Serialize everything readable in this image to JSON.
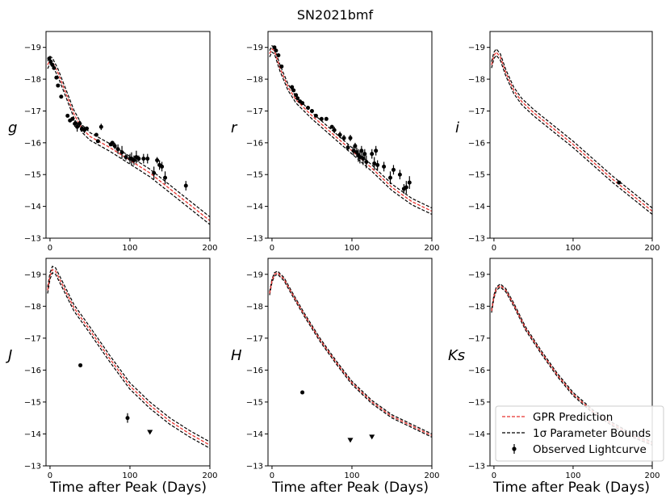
{
  "chart_data": {
    "title": "SN2021bmf",
    "type": "line",
    "xlabel": "Time after Peak (Days)",
    "xlim": [
      -5,
      200
    ],
    "ylim": [
      -19.5,
      -13
    ],
    "x_ticks": [
      0,
      100,
      200
    ],
    "y_ticks": [
      -19,
      -18,
      -17,
      -16,
      -15,
      -14,
      -13
    ],
    "y_inverted": true,
    "legend": {
      "location": "lower-right",
      "entries": [
        "GPR Prediction",
        "1σ Parameter Bounds",
        "Observed Lightcurve"
      ]
    },
    "colors": {
      "gpr": "#e8322e",
      "bounds": "#000000",
      "observed": "#000000"
    },
    "panels": [
      {
        "band": "g",
        "model": [
          [
            -3,
            -18.45
          ],
          [
            0,
            -18.6
          ],
          [
            3,
            -18.55
          ],
          [
            10,
            -18.2
          ],
          [
            20,
            -17.55
          ],
          [
            30,
            -16.9
          ],
          [
            40,
            -16.45
          ],
          [
            50,
            -16.2
          ],
          [
            75,
            -15.85
          ],
          [
            100,
            -15.45
          ],
          [
            125,
            -15.05
          ],
          [
            150,
            -14.55
          ],
          [
            175,
            -14.05
          ],
          [
            200,
            -13.55
          ]
        ],
        "band_width": 0.12,
        "observations": [
          [
            -1,
            -18.65,
            0
          ],
          [
            1,
            -18.55,
            0
          ],
          [
            3,
            -18.45,
            0
          ],
          [
            5,
            -18.35,
            0
          ],
          [
            8,
            -18.05,
            0
          ],
          [
            10,
            -17.8,
            0
          ],
          [
            14,
            -17.45,
            0
          ],
          [
            22,
            -16.85,
            0
          ],
          [
            25,
            -16.7,
            0.05
          ],
          [
            28,
            -16.75,
            0
          ],
          [
            31,
            -16.6,
            0.1
          ],
          [
            34,
            -16.5,
            0.15
          ],
          [
            37,
            -16.6,
            0.1
          ],
          [
            40,
            -16.45,
            0.1
          ],
          [
            43,
            -16.4,
            0.1
          ],
          [
            46,
            -16.45,
            0
          ],
          [
            58,
            -16.25,
            0
          ],
          [
            60,
            -16.05,
            0
          ],
          [
            64,
            -16.5,
            0.1
          ],
          [
            76,
            -15.95,
            0
          ],
          [
            78,
            -16.0,
            0
          ],
          [
            81,
            -15.9,
            0.1
          ],
          [
            85,
            -15.8,
            0.15
          ],
          [
            90,
            -15.7,
            0.2
          ],
          [
            95,
            -15.55,
            0.1
          ],
          [
            100,
            -15.5,
            0.15
          ],
          [
            102,
            -15.5,
            0.2
          ],
          [
            105,
            -15.45,
            0.15
          ],
          [
            108,
            -15.55,
            0.2
          ],
          [
            111,
            -15.5,
            0.1
          ],
          [
            117,
            -15.5,
            0.15
          ],
          [
            122,
            -15.5,
            0.15
          ],
          [
            130,
            -15.05,
            0.2
          ],
          [
            134,
            -15.45,
            0.1
          ],
          [
            137,
            -15.3,
            0.15
          ],
          [
            140,
            -15.25,
            0.15
          ],
          [
            144,
            -14.9,
            0.2
          ],
          [
            170,
            -14.65,
            0.15
          ]
        ],
        "upper_limits": []
      },
      {
        "band": "r",
        "model": [
          [
            -3,
            -18.8
          ],
          [
            0,
            -18.95
          ],
          [
            3,
            -18.9
          ],
          [
            10,
            -18.35
          ],
          [
            20,
            -17.75
          ],
          [
            30,
            -17.35
          ],
          [
            50,
            -16.85
          ],
          [
            75,
            -16.3
          ],
          [
            100,
            -15.75
          ],
          [
            125,
            -15.2
          ],
          [
            150,
            -14.6
          ],
          [
            175,
            -14.15
          ],
          [
            200,
            -13.85
          ]
        ],
        "band_width": 0.1,
        "observations": [
          [
            3,
            -19.0,
            0
          ],
          [
            5,
            -18.9,
            0
          ],
          [
            8,
            -18.75,
            0
          ],
          [
            12,
            -18.4,
            0
          ],
          [
            25,
            -17.75,
            0
          ],
          [
            27,
            -17.65,
            0
          ],
          [
            30,
            -17.5,
            0
          ],
          [
            32,
            -17.4,
            0
          ],
          [
            35,
            -17.3,
            0
          ],
          [
            38,
            -17.25,
            0
          ],
          [
            45,
            -17.1,
            0.05
          ],
          [
            50,
            -17.0,
            0
          ],
          [
            55,
            -16.85,
            0
          ],
          [
            62,
            -16.75,
            0
          ],
          [
            68,
            -16.75,
            0
          ],
          [
            75,
            -16.5,
            0
          ],
          [
            78,
            -16.4,
            0.1
          ],
          [
            85,
            -16.25,
            0.1
          ],
          [
            90,
            -16.15,
            0.1
          ],
          [
            95,
            -15.85,
            0.1
          ],
          [
            98,
            -16.15,
            0.1
          ],
          [
            102,
            -15.75,
            0.15
          ],
          [
            104,
            -15.9,
            0.1
          ],
          [
            106,
            -15.7,
            0.15
          ],
          [
            108,
            -15.6,
            0.2
          ],
          [
            110,
            -15.55,
            0.2
          ],
          [
            112,
            -15.75,
            0.15
          ],
          [
            114,
            -15.5,
            0.2
          ],
          [
            116,
            -15.65,
            0.15
          ],
          [
            118,
            -15.4,
            0.2
          ],
          [
            125,
            -15.65,
            0.15
          ],
          [
            128,
            -15.35,
            0.2
          ],
          [
            130,
            -15.75,
            0.15
          ],
          [
            132,
            -15.3,
            0.15
          ],
          [
            140,
            -15.25,
            0.15
          ],
          [
            148,
            -14.9,
            0.2
          ],
          [
            152,
            -15.15,
            0.15
          ],
          [
            160,
            -15.0,
            0.15
          ],
          [
            165,
            -14.55,
            0.15
          ],
          [
            168,
            -14.6,
            0.2
          ],
          [
            172,
            -14.75,
            0.2
          ]
        ],
        "upper_limits": []
      },
      {
        "band": "i",
        "model": [
          [
            -3,
            -18.45
          ],
          [
            0,
            -18.75
          ],
          [
            3,
            -18.85
          ],
          [
            8,
            -18.7
          ],
          [
            15,
            -18.2
          ],
          [
            25,
            -17.65
          ],
          [
            35,
            -17.3
          ],
          [
            50,
            -16.95
          ],
          [
            75,
            -16.45
          ],
          [
            100,
            -15.95
          ],
          [
            125,
            -15.4
          ],
          [
            150,
            -14.85
          ],
          [
            175,
            -14.35
          ],
          [
            200,
            -13.85
          ]
        ],
        "band_width": 0.1,
        "observations": [
          [
            158,
            -14.75,
            0
          ]
        ],
        "upper_limits": []
      },
      {
        "band": "J",
        "model": [
          [
            -3,
            -18.5
          ],
          [
            0,
            -18.95
          ],
          [
            3,
            -19.15
          ],
          [
            7,
            -19.1
          ],
          [
            12,
            -18.85
          ],
          [
            20,
            -18.45
          ],
          [
            30,
            -17.95
          ],
          [
            50,
            -17.25
          ],
          [
            75,
            -16.35
          ],
          [
            100,
            -15.5
          ],
          [
            125,
            -14.9
          ],
          [
            150,
            -14.4
          ],
          [
            175,
            -14.0
          ],
          [
            200,
            -13.65
          ]
        ],
        "band_width": 0.1,
        "observations": [
          [
            38,
            -16.15,
            0
          ],
          [
            97,
            -14.5,
            0.15
          ]
        ],
        "upper_limits": [
          [
            125,
            -14.05
          ]
        ]
      },
      {
        "band": "H",
        "model": [
          [
            -3,
            -18.4
          ],
          [
            0,
            -18.8
          ],
          [
            3,
            -19.0
          ],
          [
            7,
            -19.05
          ],
          [
            15,
            -18.85
          ],
          [
            25,
            -18.4
          ],
          [
            40,
            -17.75
          ],
          [
            60,
            -16.95
          ],
          [
            80,
            -16.25
          ],
          [
            100,
            -15.6
          ],
          [
            125,
            -15.0
          ],
          [
            150,
            -14.55
          ],
          [
            175,
            -14.25
          ],
          [
            200,
            -13.95
          ]
        ],
        "band_width": 0.05,
        "observations": [
          [
            38,
            -15.3,
            0
          ]
        ],
        "upper_limits": [
          [
            98,
            -13.8
          ],
          [
            125,
            -13.9
          ]
        ]
      },
      {
        "band": "Ks",
        "model": [
          [
            -3,
            -17.85
          ],
          [
            0,
            -18.3
          ],
          [
            3,
            -18.55
          ],
          [
            8,
            -18.65
          ],
          [
            15,
            -18.5
          ],
          [
            25,
            -18.05
          ],
          [
            40,
            -17.3
          ],
          [
            60,
            -16.55
          ],
          [
            80,
            -15.85
          ],
          [
            100,
            -15.25
          ],
          [
            125,
            -14.7
          ],
          [
            150,
            -14.3
          ],
          [
            175,
            -13.95
          ],
          [
            200,
            -13.7
          ]
        ],
        "band_width": 0.05,
        "observations": [],
        "upper_limits": []
      }
    ]
  }
}
